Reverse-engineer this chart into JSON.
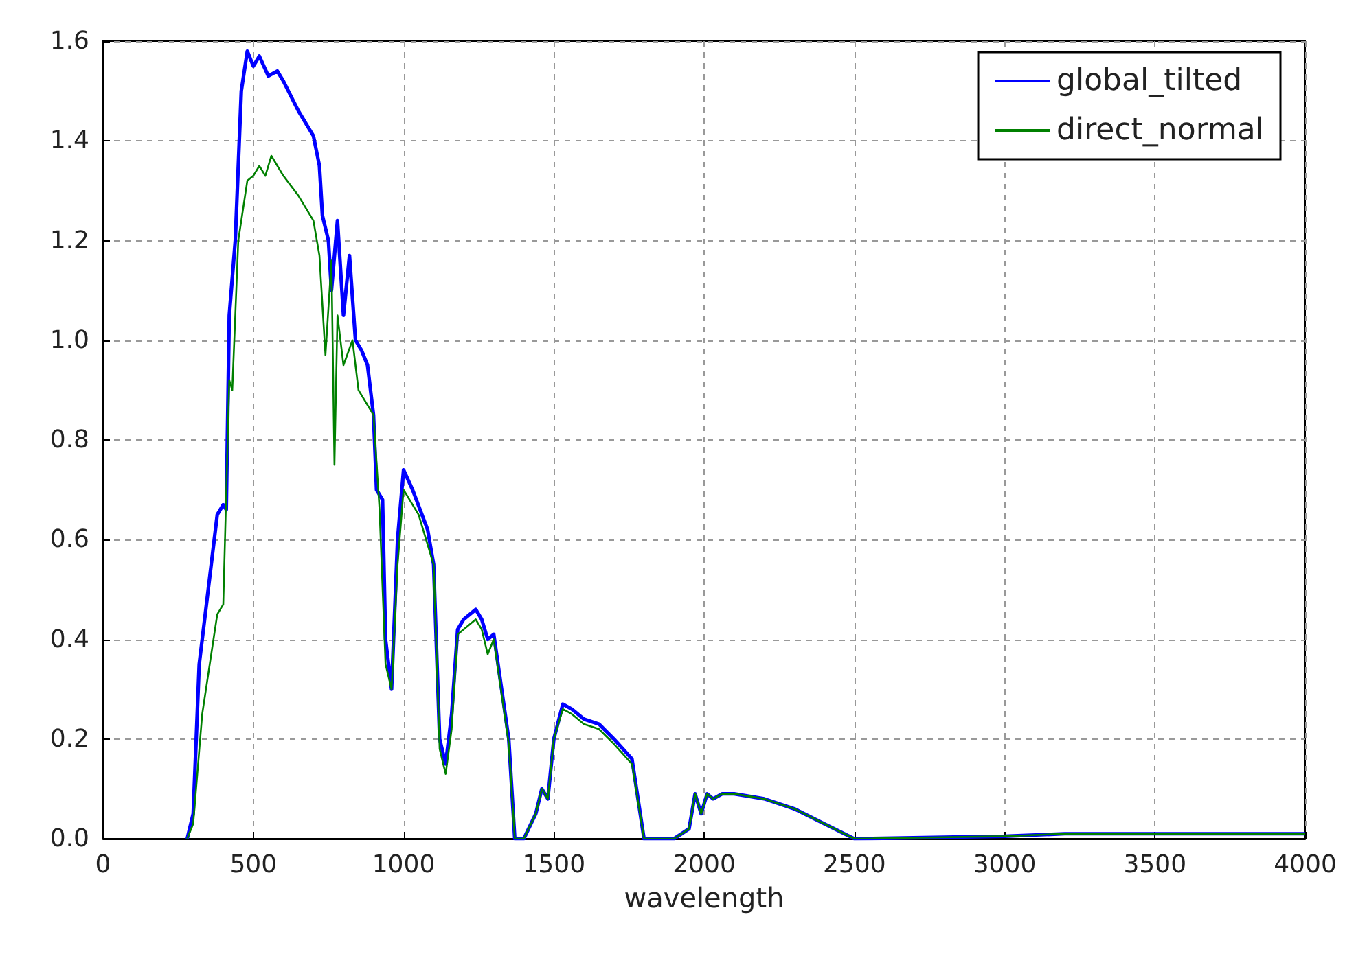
{
  "chart_data": {
    "type": "line",
    "xlabel": "wavelength",
    "xlim": [
      0,
      4000
    ],
    "xticks": [
      0,
      500,
      1000,
      1500,
      2000,
      2500,
      3000,
      3500,
      4000
    ],
    "ylim": [
      0,
      1.6
    ],
    "yticks": [
      {
        "value": 0,
        "label": "0.0"
      },
      0.2,
      0.4,
      0.6,
      0.8,
      {
        "value": 1,
        "label": "1.0"
      },
      1.2,
      1.4,
      1.6
    ],
    "grid": true,
    "legend": "top right",
    "line_style": "solid",
    "marker": "none",
    "series": [
      {
        "name": "global_tilted",
        "color": "#0000ff",
        "x": [
          280,
          300,
          320,
          350,
          380,
          400,
          410,
          420,
          440,
          460,
          480,
          500,
          520,
          550,
          580,
          600,
          650,
          700,
          720,
          730,
          750,
          760,
          780,
          800,
          820,
          840,
          860,
          880,
          900,
          910,
          930,
          940,
          960,
          980,
          1000,
          1030,
          1080,
          1100,
          1120,
          1140,
          1160,
          1180,
          1200,
          1240,
          1260,
          1280,
          1300,
          1350,
          1370,
          1400,
          1440,
          1460,
          1480,
          1500,
          1530,
          1560,
          1600,
          1650,
          1700,
          1760,
          1800,
          1900,
          1950,
          1970,
          1990,
          2010,
          2030,
          2060,
          2100,
          2200,
          2300,
          2400,
          2500,
          3000,
          3200,
          3500,
          4000
        ],
        "values": [
          0,
          0.05,
          0.35,
          0.5,
          0.65,
          0.67,
          0.66,
          1.05,
          1.2,
          1.5,
          1.58,
          1.55,
          1.57,
          1.53,
          1.54,
          1.52,
          1.46,
          1.41,
          1.35,
          1.25,
          1.2,
          1.1,
          1.24,
          1.05,
          1.17,
          1.0,
          0.98,
          0.95,
          0.85,
          0.7,
          0.68,
          0.4,
          0.3,
          0.6,
          0.74,
          0.7,
          0.62,
          0.55,
          0.2,
          0.15,
          0.25,
          0.42,
          0.44,
          0.46,
          0.44,
          0.4,
          0.41,
          0.2,
          0,
          0,
          0.05,
          0.1,
          0.08,
          0.2,
          0.27,
          0.26,
          0.24,
          0.23,
          0.2,
          0.16,
          0,
          0,
          0.02,
          0.09,
          0.05,
          0.09,
          0.08,
          0.09,
          0.09,
          0.08,
          0.06,
          0.03,
          0,
          0.005,
          0.01,
          0.01,
          0.01
        ]
      },
      {
        "name": "direct_normal",
        "color": "#008000",
        "x": [
          280,
          300,
          330,
          380,
          400,
          420,
          430,
          450,
          480,
          500,
          520,
          540,
          560,
          600,
          650,
          700,
          720,
          740,
          760,
          770,
          780,
          800,
          830,
          850,
          900,
          920,
          940,
          960,
          980,
          1000,
          1050,
          1100,
          1120,
          1140,
          1160,
          1180,
          1200,
          1240,
          1260,
          1280,
          1300,
          1350,
          1370,
          1400,
          1440,
          1460,
          1480,
          1500,
          1530,
          1560,
          1600,
          1650,
          1700,
          1760,
          1800,
          1900,
          1950,
          1970,
          1990,
          2010,
          2030,
          2060,
          2100,
          2200,
          2300,
          2400,
          2500,
          3000,
          3200,
          3500,
          4000
        ],
        "values": [
          0,
          0.03,
          0.25,
          0.45,
          0.47,
          0.92,
          0.9,
          1.2,
          1.32,
          1.33,
          1.35,
          1.33,
          1.37,
          1.33,
          1.29,
          1.24,
          1.17,
          0.97,
          1.16,
          0.75,
          1.05,
          0.95,
          1.0,
          0.9,
          0.85,
          0.66,
          0.35,
          0.3,
          0.55,
          0.7,
          0.65,
          0.55,
          0.18,
          0.13,
          0.22,
          0.41,
          0.42,
          0.44,
          0.42,
          0.37,
          0.4,
          0.19,
          0,
          0,
          0.05,
          0.1,
          0.08,
          0.2,
          0.26,
          0.25,
          0.23,
          0.22,
          0.19,
          0.15,
          0,
          0,
          0.02,
          0.09,
          0.05,
          0.09,
          0.08,
          0.09,
          0.09,
          0.08,
          0.06,
          0.03,
          0,
          0.005,
          0.01,
          0.01,
          0.01
        ]
      }
    ]
  }
}
